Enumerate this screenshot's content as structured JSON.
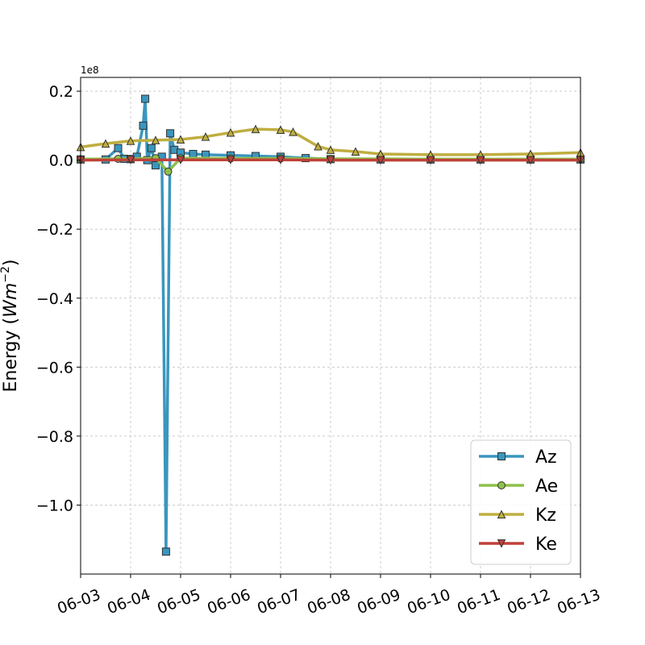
{
  "chart_data": {
    "type": "line",
    "title": "",
    "xlabel": "",
    "ylabel_prefix": "Energy (",
    "ylabel_unit": "Wm",
    "ylabel_exp": "−2",
    "ylabel_suffix": ")",
    "y_offset_text": "1e8",
    "xlim": [
      "2023-06-03",
      "2023-06-13"
    ],
    "ylim": [
      -1.2,
      0.24
    ],
    "x_tick_labels": [
      "06-03",
      "06-04",
      "06-05",
      "06-06",
      "06-07",
      "06-08",
      "06-09",
      "06-10",
      "06-11",
      "06-12",
      "06-13"
    ],
    "y_ticks": [
      0.2,
      0.0,
      -0.2,
      -0.4,
      -0.6,
      -0.8,
      -1.0
    ],
    "y_tick_labels": [
      "0.2",
      "0.0",
      "−0.2",
      "−0.4",
      "−0.6",
      "−0.8",
      "−1.0"
    ],
    "grid": true,
    "legend_position": "lower-right",
    "series": [
      {
        "name": "Az",
        "color": "#3a96be",
        "marker": "square",
        "points": [
          [
            "2023-06-03T00:00",
            0.002
          ],
          [
            "2023-06-03T12:00",
            0.002
          ],
          [
            "2023-06-03T18:00",
            0.035
          ],
          [
            "2023-06-03T21:00",
            0.004
          ],
          [
            "2023-06-04T00:00",
            0.003
          ],
          [
            "2023-06-04T03:00",
            0.01
          ],
          [
            "2023-06-04T06:00",
            0.1
          ],
          [
            "2023-06-04T07:00",
            0.178
          ],
          [
            "2023-06-04T08:00",
            0.0
          ],
          [
            "2023-06-04T10:00",
            0.035
          ],
          [
            "2023-06-04T12:00",
            -0.015
          ],
          [
            "2023-06-04T15:00",
            0.01
          ],
          [
            "2023-06-04T17:00",
            -1.135
          ],
          [
            "2023-06-04T19:00",
            0.078
          ],
          [
            "2023-06-04T21:00",
            0.03
          ],
          [
            "2023-06-05T00:00",
            0.022
          ],
          [
            "2023-06-05T06:00",
            0.018
          ],
          [
            "2023-06-05T12:00",
            0.016
          ],
          [
            "2023-06-06T00:00",
            0.014
          ],
          [
            "2023-06-06T12:00",
            0.012
          ],
          [
            "2023-06-07T00:00",
            0.01
          ],
          [
            "2023-06-07T12:00",
            0.006
          ],
          [
            "2023-06-08T00:00",
            0.003
          ],
          [
            "2023-06-09T00:00",
            0.002
          ],
          [
            "2023-06-10T00:00",
            0.002
          ],
          [
            "2023-06-11T00:00",
            0.002
          ],
          [
            "2023-06-12T00:00",
            0.002
          ],
          [
            "2023-06-13T00:00",
            0.002
          ]
        ]
      },
      {
        "name": "Ae",
        "color": "#8fc04a",
        "marker": "circle",
        "points": [
          [
            "2023-06-03T00:00",
            0.003
          ],
          [
            "2023-06-03T18:00",
            0.004
          ],
          [
            "2023-06-04T00:00",
            0.004
          ],
          [
            "2023-06-04T12:00",
            0.006
          ],
          [
            "2023-06-04T18:00",
            -0.033
          ],
          [
            "2023-06-05T00:00",
            0.006
          ],
          [
            "2023-06-06T00:00",
            0.005
          ],
          [
            "2023-06-07T00:00",
            0.005
          ],
          [
            "2023-06-08T00:00",
            0.004
          ],
          [
            "2023-06-09T00:00",
            0.004
          ],
          [
            "2023-06-10T00:00",
            0.003
          ],
          [
            "2023-06-11T00:00",
            0.003
          ],
          [
            "2023-06-12T00:00",
            0.003
          ],
          [
            "2023-06-13T00:00",
            0.003
          ]
        ]
      },
      {
        "name": "Kz",
        "color": "#bfae40",
        "marker": "triangle-up",
        "points": [
          [
            "2023-06-03T00:00",
            0.038
          ],
          [
            "2023-06-03T12:00",
            0.048
          ],
          [
            "2023-06-04T00:00",
            0.056
          ],
          [
            "2023-06-04T12:00",
            0.058
          ],
          [
            "2023-06-05T00:00",
            0.06
          ],
          [
            "2023-06-05T12:00",
            0.068
          ],
          [
            "2023-06-06T00:00",
            0.08
          ],
          [
            "2023-06-06T12:00",
            0.09
          ],
          [
            "2023-06-07T00:00",
            0.088
          ],
          [
            "2023-06-07T06:00",
            0.082
          ],
          [
            "2023-06-07T18:00",
            0.04
          ],
          [
            "2023-06-08T00:00",
            0.03
          ],
          [
            "2023-06-08T12:00",
            0.025
          ],
          [
            "2023-06-09T00:00",
            0.018
          ],
          [
            "2023-06-10T00:00",
            0.016
          ],
          [
            "2023-06-11T00:00",
            0.016
          ],
          [
            "2023-06-12T00:00",
            0.018
          ],
          [
            "2023-06-13T00:00",
            0.022
          ]
        ]
      },
      {
        "name": "Ke",
        "color": "#c0413a",
        "marker": "triangle-down",
        "points": [
          [
            "2023-06-03T00:00",
            0.0
          ],
          [
            "2023-06-04T00:00",
            0.001
          ],
          [
            "2023-06-05T00:00",
            0.001
          ],
          [
            "2023-06-06T00:00",
            0.001
          ],
          [
            "2023-06-07T00:00",
            0.001
          ],
          [
            "2023-06-08T00:00",
            0.0
          ],
          [
            "2023-06-09T00:00",
            0.0
          ],
          [
            "2023-06-10T00:00",
            0.0
          ],
          [
            "2023-06-11T00:00",
            0.0
          ],
          [
            "2023-06-12T00:00",
            0.0
          ],
          [
            "2023-06-13T00:00",
            0.0
          ]
        ]
      }
    ]
  }
}
